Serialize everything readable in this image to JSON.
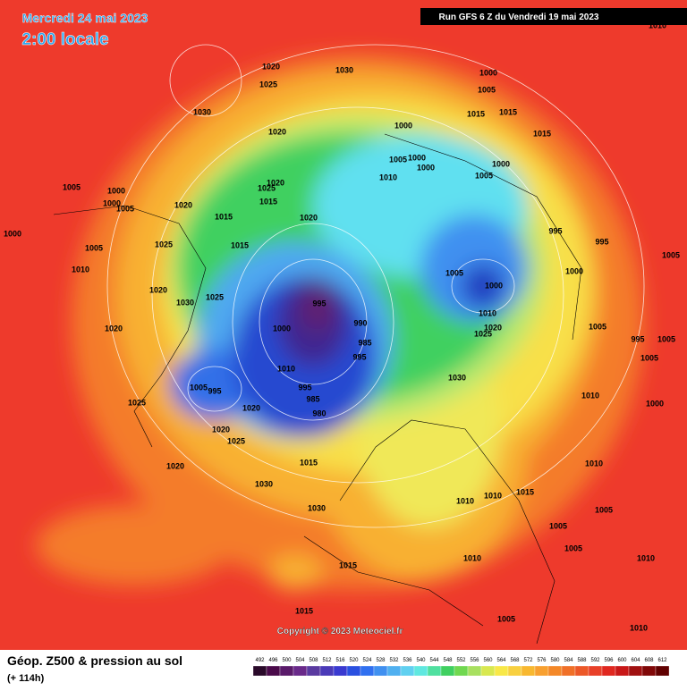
{
  "header": {
    "date": "Mercredi 24 mai 2023",
    "time": "2:00 locale",
    "run": "Run GFS 6 Z du Vendredi 19 mai 2023"
  },
  "footer": {
    "title": "Géop. Z500 & pression au sol",
    "lead": "(+ 114h)",
    "copyright": "Copyright © 2023 Meteociel.fr"
  },
  "scale": [
    492,
    496,
    500,
    504,
    508,
    512,
    516,
    520,
    524,
    528,
    532,
    536,
    540,
    544,
    548,
    552,
    556,
    560,
    564,
    568,
    572,
    576,
    580,
    584,
    588,
    592,
    596,
    600,
    604,
    608,
    612
  ],
  "isobar_labels": [
    1020,
    1030,
    1025,
    1030,
    1000,
    1005,
    1015,
    1015,
    1015,
    1020,
    1000,
    1005,
    1000,
    1000,
    1010,
    1000,
    1005,
    1005,
    1000,
    1020,
    1000,
    1005,
    1025,
    1020,
    1015,
    1015,
    1020,
    1000,
    1005,
    1025,
    1015,
    995,
    995,
    1010,
    1005,
    1000,
    1005,
    1020,
    1025,
    1000,
    1030,
    995,
    1010,
    1020,
    1000,
    990,
    1005,
    985,
    1020,
    1025,
    995,
    1005,
    995,
    1005,
    1010,
    995,
    985,
    1005,
    995,
    1030,
    1010,
    1000,
    1025,
    1020,
    980,
    1020,
    1025,
    1015,
    1020,
    1010,
    1030,
    1010,
    1010,
    1015,
    1030,
    1005,
    1005,
    1005,
    1015,
    1010,
    1010,
    1015,
    1005,
    1010,
    1010
  ]
}
